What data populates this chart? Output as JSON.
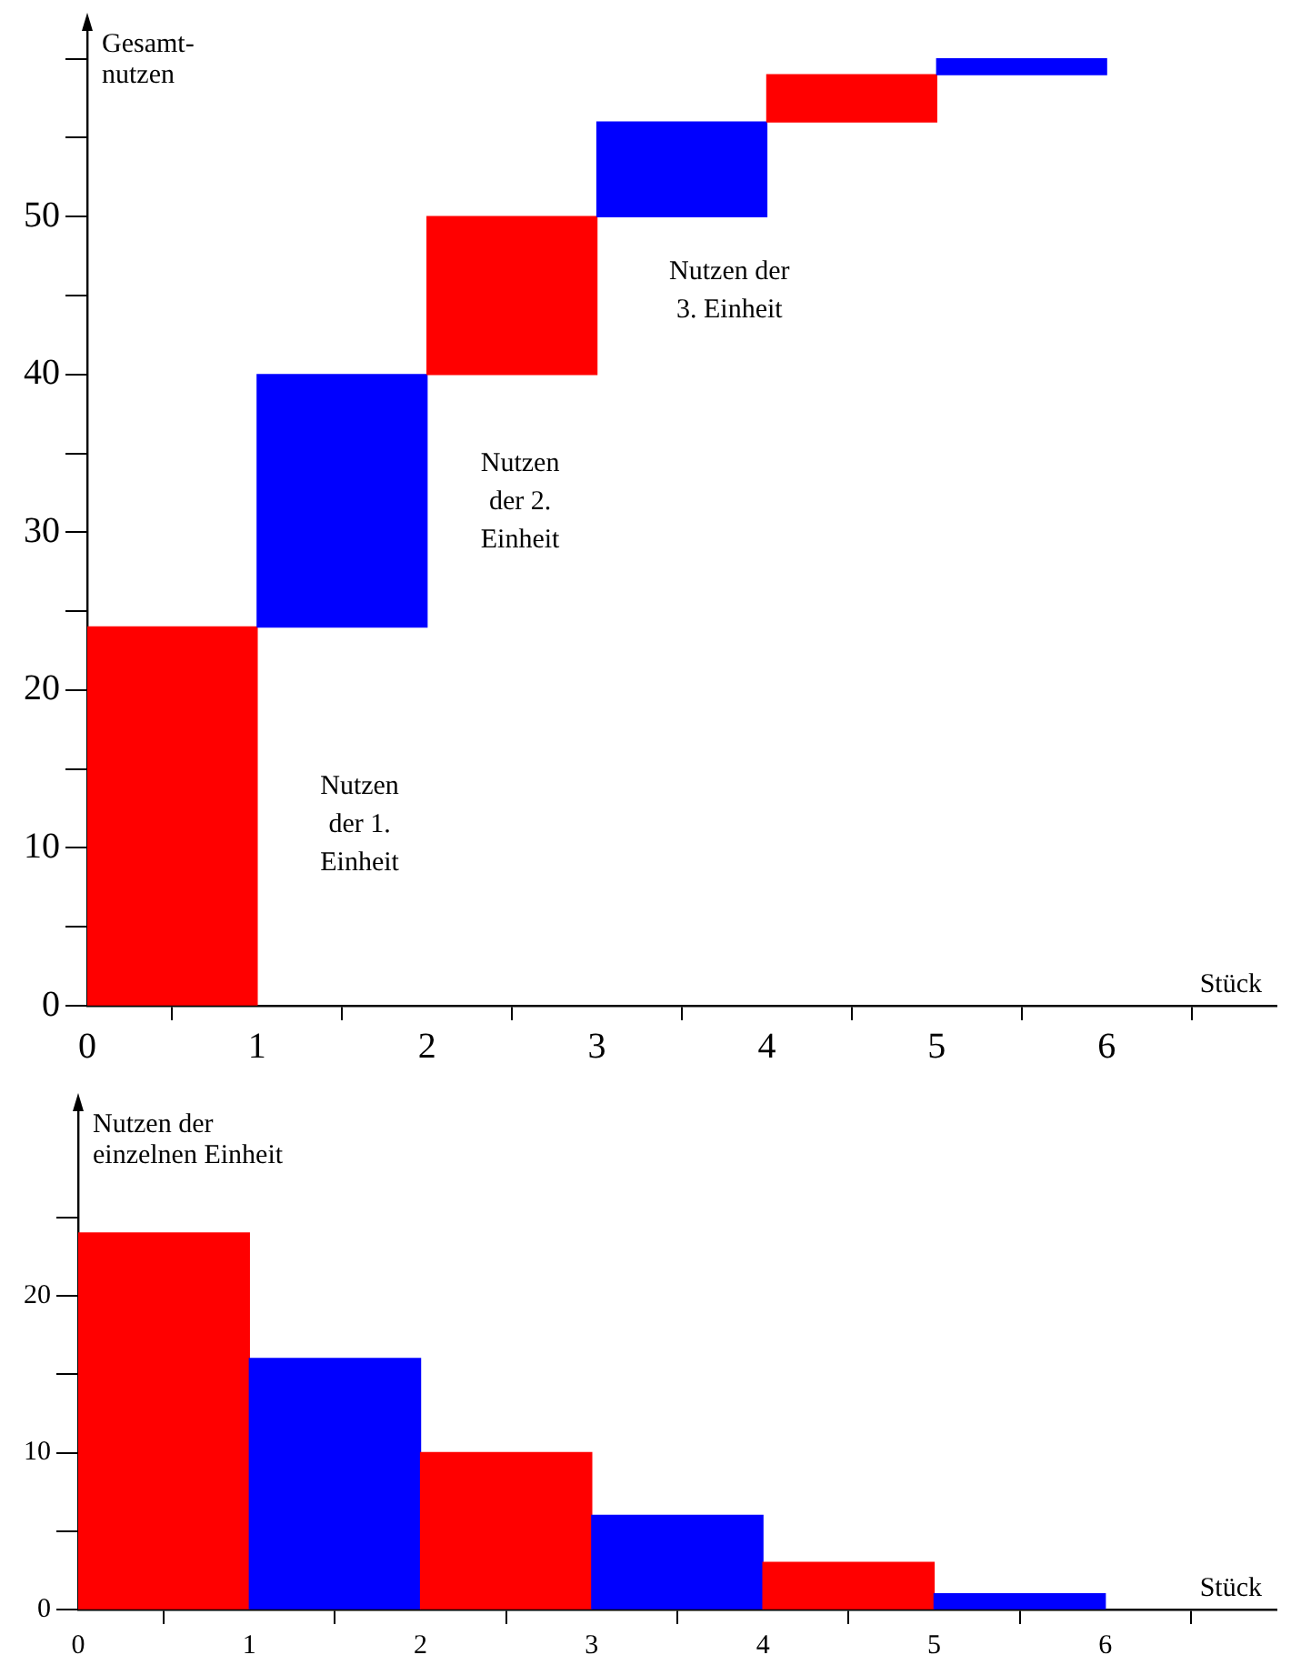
{
  "chart_data": [
    {
      "type": "bar",
      "xlabel": "Stück",
      "ylabel": "Gesamt-\nnutzen",
      "x": [
        0.5,
        1.5,
        2.5,
        3.5,
        4.5,
        5.5
      ],
      "values": [
        24,
        16,
        10,
        6,
        3,
        1
      ],
      "base": [
        0,
        24,
        40,
        50,
        56,
        59
      ],
      "colors": [
        "#ff0000",
        "#0000ff",
        "#ff0000",
        "#0000ff",
        "#ff0000",
        "#0000ff"
      ],
      "xlim": [
        0,
        7
      ],
      "xticks": [
        0,
        1,
        2,
        3,
        4,
        5,
        6
      ],
      "ylim": [
        0,
        62
      ],
      "yticks": [
        0,
        {
          "value": 5,
          "label": null
        },
        10,
        {
          "value": 15,
          "label": null
        },
        20,
        {
          "value": 25,
          "label": null
        },
        30,
        {
          "value": 35,
          "label": null
        },
        40,
        {
          "value": 45,
          "label": null
        },
        50,
        {
          "value": 55,
          "label": null
        },
        {
          "value": 60,
          "label": null
        }
      ],
      "annotations": [
        "Nutzen\nder 1.\nEinheit",
        "Nutzen\nder 2.\nEinheit",
        "Nutzen der\n3. Einheit"
      ]
    },
    {
      "type": "bar",
      "xlabel": "Stück",
      "ylabel": "Nutzen der\neinzelnen Einheit",
      "x": [
        0.5,
        1.5,
        2.5,
        3.5,
        4.5,
        5.5
      ],
      "values": [
        24,
        16,
        10,
        6,
        3,
        1
      ],
      "colors": [
        "#ff0000",
        "#0000ff",
        "#ff0000",
        "#0000ff",
        "#ff0000",
        "#0000ff"
      ],
      "xlim": [
        0,
        7
      ],
      "xticks": [
        0,
        1,
        2,
        3,
        4,
        5,
        6
      ],
      "ylim": [
        0,
        32
      ],
      "yticks": [
        0,
        {
          "value": 5,
          "label": null
        },
        10,
        {
          "value": 15,
          "label": null
        },
        20,
        {
          "value": 25,
          "label": null
        }
      ]
    }
  ]
}
